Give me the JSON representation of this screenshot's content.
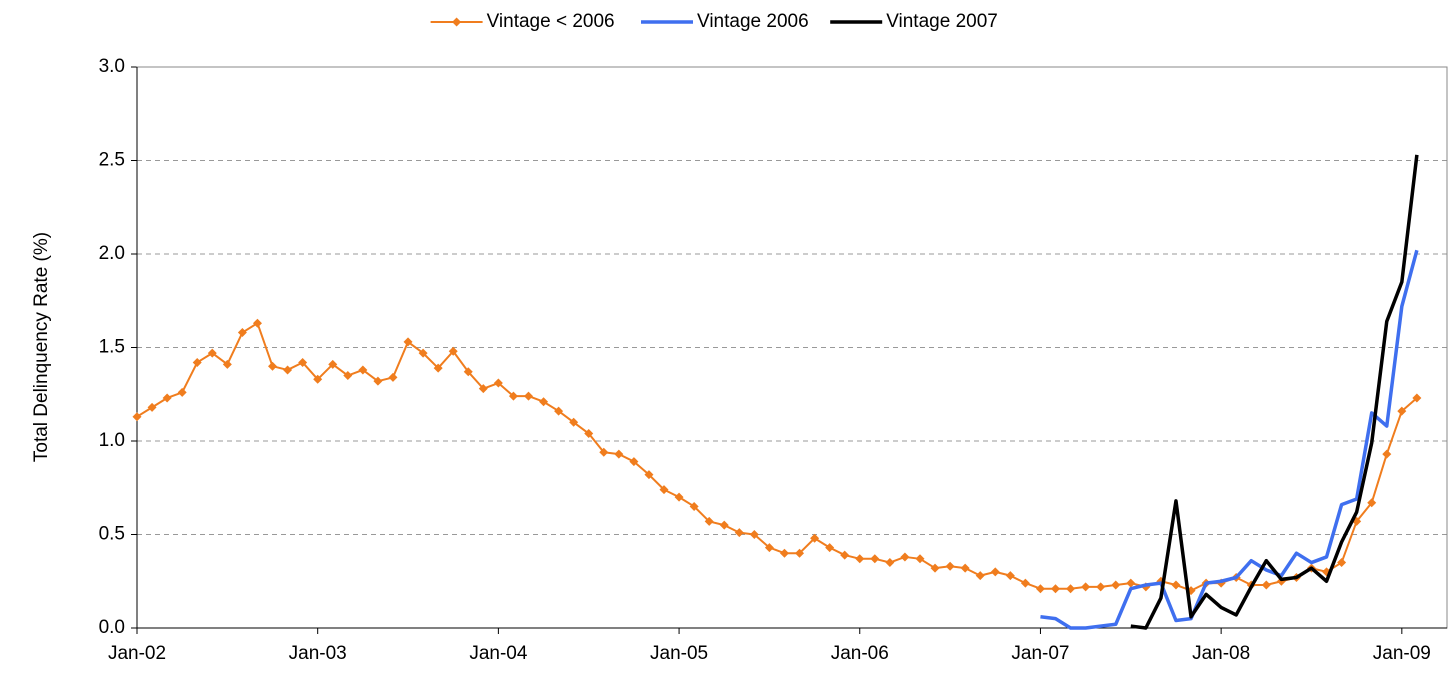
{
  "chart_data": {
    "type": "line",
    "y_label": "Total Delinquency Rate (%)",
    "x": [
      "2002-01",
      "2002-02",
      "2002-03",
      "2002-04",
      "2002-05",
      "2002-06",
      "2002-07",
      "2002-08",
      "2002-09",
      "2002-10",
      "2002-11",
      "2002-12",
      "2003-01",
      "2003-02",
      "2003-03",
      "2003-04",
      "2003-05",
      "2003-06",
      "2003-07",
      "2003-08",
      "2003-09",
      "2003-10",
      "2003-11",
      "2003-12",
      "2004-01",
      "2004-02",
      "2004-03",
      "2004-04",
      "2004-05",
      "2004-06",
      "2004-07",
      "2004-08",
      "2004-09",
      "2004-10",
      "2004-11",
      "2004-12",
      "2005-01",
      "2005-02",
      "2005-03",
      "2005-04",
      "2005-05",
      "2005-06",
      "2005-07",
      "2005-08",
      "2005-09",
      "2005-10",
      "2005-11",
      "2005-12",
      "2006-01",
      "2006-02",
      "2006-03",
      "2006-04",
      "2006-05",
      "2006-06",
      "2006-07",
      "2006-08",
      "2006-09",
      "2006-10",
      "2006-11",
      "2006-12",
      "2007-01",
      "2007-02",
      "2007-03",
      "2007-04",
      "2007-05",
      "2007-06",
      "2007-07",
      "2007-08",
      "2007-09",
      "2007-10",
      "2007-11",
      "2007-12",
      "2008-01",
      "2008-02",
      "2008-03",
      "2008-04",
      "2008-05",
      "2008-06",
      "2008-07",
      "2008-08",
      "2008-09",
      "2008-10",
      "2008-11",
      "2008-12",
      "2009-01",
      "2009-02"
    ],
    "series": [
      {
        "name": "Vintage < 2006",
        "color": "#f07d1e",
        "marker": "diamond",
        "values": [
          1.13,
          1.18,
          1.23,
          1.26,
          1.42,
          1.47,
          1.41,
          1.58,
          1.63,
          1.4,
          1.38,
          1.42,
          1.33,
          1.41,
          1.35,
          1.38,
          1.32,
          1.34,
          1.53,
          1.47,
          1.39,
          1.48,
          1.37,
          1.28,
          1.31,
          1.24,
          1.24,
          1.21,
          1.16,
          1.1,
          1.04,
          0.94,
          0.93,
          0.89,
          0.82,
          0.74,
          0.7,
          0.65,
          0.57,
          0.55,
          0.51,
          0.5,
          0.43,
          0.4,
          0.4,
          0.48,
          0.43,
          0.39,
          0.37,
          0.37,
          0.35,
          0.38,
          0.37,
          0.32,
          0.33,
          0.32,
          0.28,
          0.3,
          0.28,
          0.24,
          0.21,
          0.21,
          0.21,
          0.22,
          0.22,
          0.23,
          0.24,
          0.22,
          0.25,
          0.23,
          0.2,
          0.24,
          0.24,
          0.27,
          0.23,
          0.23,
          0.25,
          0.27,
          0.32,
          0.3,
          0.35,
          0.57,
          0.67,
          0.93,
          1.16,
          1.23
        ]
      },
      {
        "name": "Vintage 2006",
        "color": "#3f6fef",
        "values": [
          null,
          null,
          null,
          null,
          null,
          null,
          null,
          null,
          null,
          null,
          null,
          null,
          null,
          null,
          null,
          null,
          null,
          null,
          null,
          null,
          null,
          null,
          null,
          null,
          null,
          null,
          null,
          null,
          null,
          null,
          null,
          null,
          null,
          null,
          null,
          null,
          null,
          null,
          null,
          null,
          null,
          null,
          null,
          null,
          null,
          null,
          null,
          null,
          null,
          null,
          null,
          null,
          null,
          null,
          null,
          null,
          null,
          null,
          null,
          null,
          0.06,
          0.05,
          0.0,
          0.0,
          0.01,
          0.02,
          0.21,
          0.23,
          0.24,
          0.04,
          0.05,
          0.24,
          0.25,
          0.27,
          0.36,
          0.31,
          0.28,
          0.4,
          0.35,
          0.38,
          0.66,
          0.69,
          1.15,
          1.08,
          1.72,
          2.02
        ]
      },
      {
        "name": "Vintage 2007",
        "color": "#000000",
        "values": [
          null,
          null,
          null,
          null,
          null,
          null,
          null,
          null,
          null,
          null,
          null,
          null,
          null,
          null,
          null,
          null,
          null,
          null,
          null,
          null,
          null,
          null,
          null,
          null,
          null,
          null,
          null,
          null,
          null,
          null,
          null,
          null,
          null,
          null,
          null,
          null,
          null,
          null,
          null,
          null,
          null,
          null,
          null,
          null,
          null,
          null,
          null,
          null,
          null,
          null,
          null,
          null,
          null,
          null,
          null,
          null,
          null,
          null,
          null,
          null,
          null,
          null,
          null,
          null,
          null,
          null,
          0.01,
          0.0,
          0.16,
          0.68,
          0.06,
          0.18,
          0.11,
          0.07,
          0.22,
          0.36,
          0.26,
          0.27,
          0.32,
          0.25,
          0.46,
          0.62,
          0.99,
          1.64,
          1.85,
          2.53
        ]
      }
    ],
    "xlim": [
      "2002-01",
      "2009-04"
    ],
    "xticks": [
      {
        "value": "2002-01",
        "label": "Jan-02"
      },
      {
        "value": "2003-01",
        "label": "Jan-03"
      },
      {
        "value": "2004-01",
        "label": "Jan-04"
      },
      {
        "value": "2005-01",
        "label": "Jan-05"
      },
      {
        "value": "2006-01",
        "label": "Jan-06"
      },
      {
        "value": "2007-01",
        "label": "Jan-07"
      },
      {
        "value": "2008-01",
        "label": "Jan-08"
      },
      {
        "value": "2009-01",
        "label": "Jan-09"
      }
    ],
    "ylim": [
      0,
      3
    ],
    "yticks": [
      {
        "value": 0,
        "label": "0.0"
      },
      0.5,
      {
        "value": 1,
        "label": "1.0"
      },
      1.5,
      {
        "value": 2,
        "label": "2.0"
      },
      2.5,
      {
        "value": 3,
        "label": "3.0"
      }
    ],
    "grid": true,
    "legend": "top"
  }
}
